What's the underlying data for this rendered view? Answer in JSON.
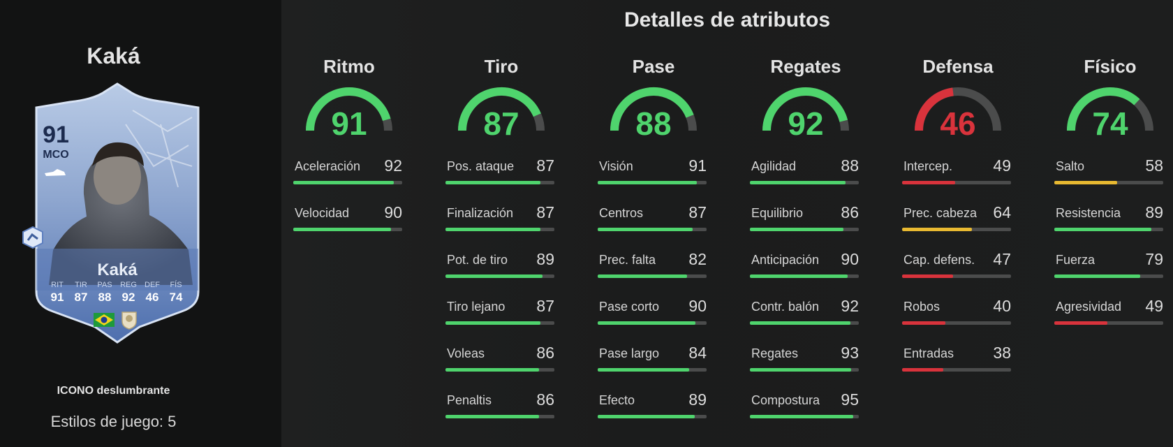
{
  "player": {
    "name": "Kaká",
    "card_name": "Kaká",
    "rating": "91",
    "position": "MCO",
    "version": "ICONO deslumbrante",
    "playstyles_label": "Estilos de juego: 5",
    "card_stats": [
      {
        "label": "RIT",
        "value": "91"
      },
      {
        "label": "TIR",
        "value": "87"
      },
      {
        "label": "PAS",
        "value": "88"
      },
      {
        "label": "REG",
        "value": "92"
      },
      {
        "label": "DEF",
        "value": "46"
      },
      {
        "label": "FÍS",
        "value": "74"
      }
    ],
    "nation": "brazil-flag",
    "club": "icons-crest"
  },
  "section_title": "Detalles de atributos",
  "colors": {
    "high": "#4fd46d",
    "mid": "#e8b931",
    "low": "#d9333c",
    "track": "#4b4c4c"
  },
  "categories": [
    {
      "name": "Ritmo",
      "value": 91,
      "subs": [
        {
          "name": "Aceleración",
          "value": 92
        },
        {
          "name": "Velocidad",
          "value": 90
        }
      ]
    },
    {
      "name": "Tiro",
      "value": 87,
      "subs": [
        {
          "name": "Pos. ataque",
          "value": 87
        },
        {
          "name": "Finalización",
          "value": 87
        },
        {
          "name": "Pot. de tiro",
          "value": 89
        },
        {
          "name": "Tiro lejano",
          "value": 87
        },
        {
          "name": "Voleas",
          "value": 86
        },
        {
          "name": "Penaltis",
          "value": 86
        }
      ]
    },
    {
      "name": "Pase",
      "value": 88,
      "subs": [
        {
          "name": "Visión",
          "value": 91
        },
        {
          "name": "Centros",
          "value": 87
        },
        {
          "name": "Prec. falta",
          "value": 82
        },
        {
          "name": "Pase corto",
          "value": 90
        },
        {
          "name": "Pase largo",
          "value": 84
        },
        {
          "name": "Efecto",
          "value": 89
        }
      ]
    },
    {
      "name": "Regates",
      "value": 92,
      "subs": [
        {
          "name": "Agilidad",
          "value": 88
        },
        {
          "name": "Equilibrio",
          "value": 86
        },
        {
          "name": "Anticipación",
          "value": 90
        },
        {
          "name": "Contr. balón",
          "value": 92
        },
        {
          "name": "Regates",
          "value": 93
        },
        {
          "name": "Compostura",
          "value": 95
        }
      ]
    },
    {
      "name": "Defensa",
      "value": 46,
      "subs": [
        {
          "name": "Intercep.",
          "value": 49
        },
        {
          "name": "Prec. cabeza",
          "value": 64
        },
        {
          "name": "Cap. defens.",
          "value": 47
        },
        {
          "name": "Robos",
          "value": 40
        },
        {
          "name": "Entradas",
          "value": 38
        }
      ]
    },
    {
      "name": "Físico",
      "value": 74,
      "subs": [
        {
          "name": "Salto",
          "value": 58
        },
        {
          "name": "Resistencia",
          "value": 89
        },
        {
          "name": "Fuerza",
          "value": 79
        },
        {
          "name": "Agresividad",
          "value": 49
        }
      ]
    }
  ]
}
